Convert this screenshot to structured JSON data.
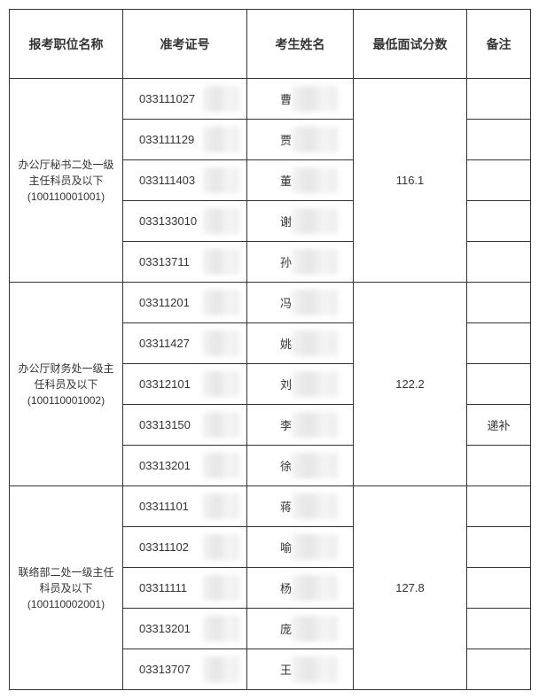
{
  "headers": {
    "position": "报考职位名称",
    "ticket": "准考证号",
    "name": "考生姓名",
    "score": "最低面试分数",
    "remark": "备注"
  },
  "groups": [
    {
      "position_title": "办公厅秘书二处一级主任科员及以下",
      "position_code": "(100110001001)",
      "score": "116.1",
      "rows": [
        {
          "ticket_prefix": "033111027",
          "name_prefix": "曹",
          "remark": ""
        },
        {
          "ticket_prefix": "033111129",
          "name_prefix": "贾",
          "remark": ""
        },
        {
          "ticket_prefix": "033111403",
          "name_prefix": "董",
          "remark": ""
        },
        {
          "ticket_prefix": "033133010",
          "name_prefix": "谢",
          "remark": ""
        },
        {
          "ticket_prefix": "03313711",
          "name_prefix": "孙",
          "remark": ""
        }
      ]
    },
    {
      "position_title": "办公厅财务处一级主任科员及以下",
      "position_code": "(100110001002)",
      "score": "122.2",
      "rows": [
        {
          "ticket_prefix": "03311201",
          "name_prefix": "冯",
          "remark": ""
        },
        {
          "ticket_prefix": "03311427",
          "name_prefix": "姚",
          "remark": ""
        },
        {
          "ticket_prefix": "03312101",
          "name_prefix": "刘",
          "remark": ""
        },
        {
          "ticket_prefix": "03313150",
          "name_prefix": "李",
          "remark": "递补"
        },
        {
          "ticket_prefix": "03313201",
          "name_prefix": "徐",
          "remark": ""
        }
      ]
    },
    {
      "position_title": "联络部二处一级主任科员及以下",
      "position_code": "(100110002001)",
      "score": "127.8",
      "rows": [
        {
          "ticket_prefix": "03311101",
          "name_prefix": "蒋",
          "remark": ""
        },
        {
          "ticket_prefix": "03311102",
          "name_prefix": "喻",
          "remark": ""
        },
        {
          "ticket_prefix": "03311111",
          "name_prefix": "杨",
          "remark": ""
        },
        {
          "ticket_prefix": "03313201",
          "name_prefix": "庞",
          "remark": ""
        },
        {
          "ticket_prefix": "03313707",
          "name_prefix": "王",
          "remark": ""
        }
      ]
    }
  ]
}
